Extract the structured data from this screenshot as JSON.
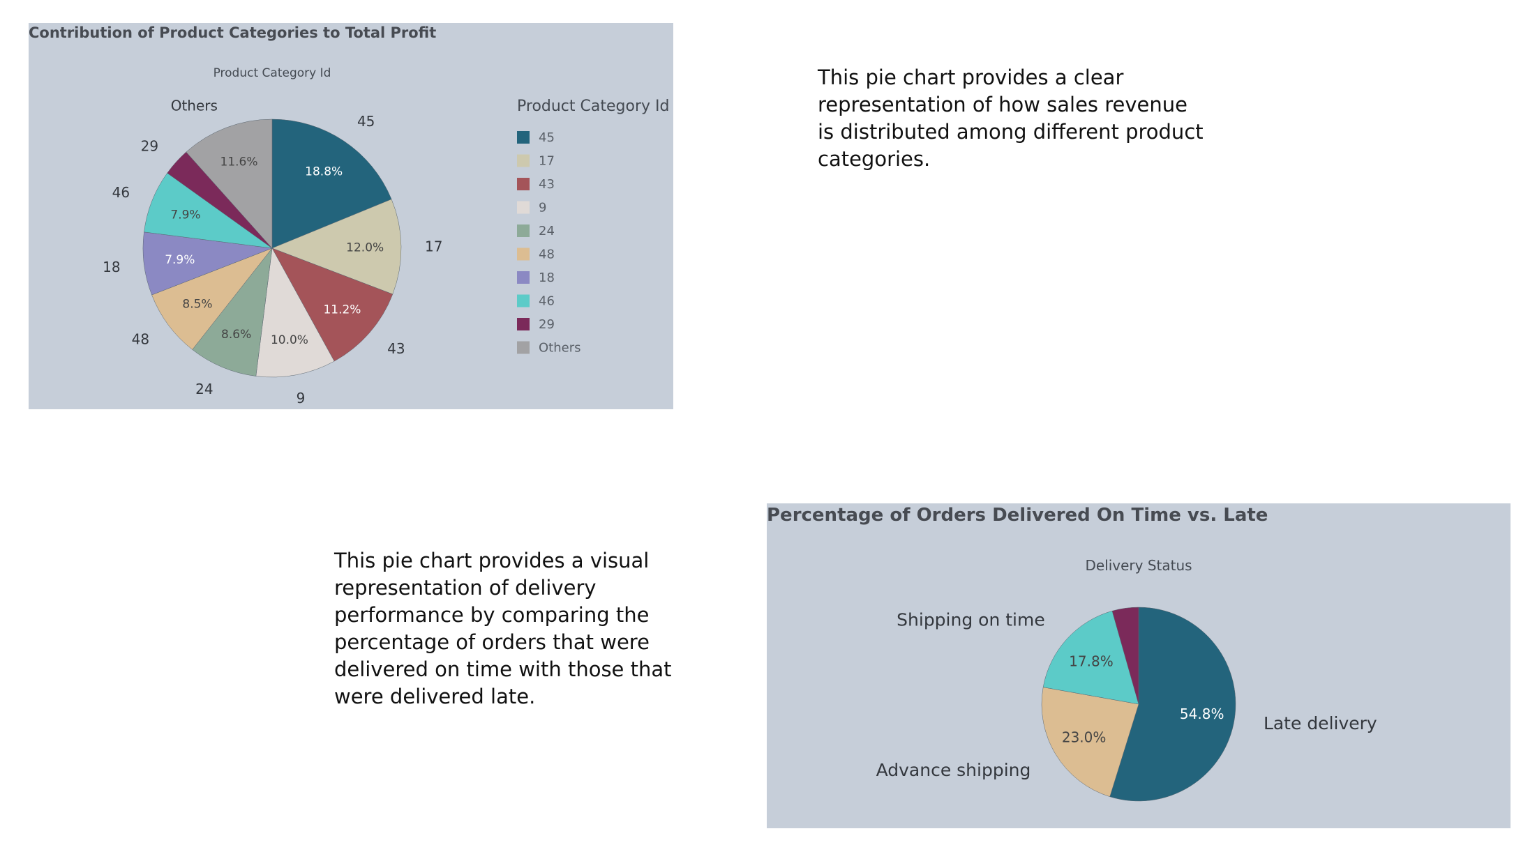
{
  "chart_data": [
    {
      "type": "pie",
      "title": "Contribution of Product Categories to Total Profit",
      "subtitle": "Product Category Id",
      "legend_title": "Product Category Id",
      "legend_position": "right",
      "categories": [
        "45",
        "17",
        "43",
        "9",
        "24",
        "48",
        "18",
        "46",
        "29",
        "Others"
      ],
      "values": [
        18.8,
        12.0,
        11.2,
        10.0,
        8.6,
        8.5,
        7.9,
        7.9,
        3.5,
        11.6
      ],
      "value_labels": [
        "18.8%",
        "12.0%",
        "11.2%",
        "10.0%",
        "8.6%",
        "8.5%",
        "7.9%",
        "7.9%",
        "",
        "11.6%"
      ],
      "colors": [
        "#23647c",
        "#cdc9ae",
        "#a45459",
        "#e0dad7",
        "#8daa98",
        "#dcbd92",
        "#8b89c3",
        "#5ccbc8",
        "#7b2a5a",
        "#a2a2a4"
      ],
      "label_text_colors": [
        "#ffffff",
        "#444444",
        "#ffffff",
        "#444444",
        "#444444",
        "#444444",
        "#ffffff",
        "#444444",
        "#ffffff",
        "#444444"
      ]
    },
    {
      "type": "pie",
      "title": "Percentage of Orders Delivered On Time vs. Late",
      "subtitle": "Delivery Status",
      "categories": [
        "Late delivery",
        "Advance shipping",
        "Shipping on time",
        ""
      ],
      "values": [
        54.8,
        23.0,
        17.8,
        4.4
      ],
      "value_labels": [
        "54.8%",
        "23.0%",
        "17.8%",
        ""
      ],
      "colors": [
        "#23647c",
        "#dcbd92",
        "#5ccbc8",
        "#7b2a5a"
      ],
      "label_text_colors": [
        "#ffffff",
        "#444444",
        "#444444",
        "#ffffff"
      ]
    }
  ],
  "texts": {
    "desc_profit": "This pie chart provides a clear representation of how sales revenue is distributed among different product categories.",
    "desc_delivery": "This pie chart provides a visual representation of delivery performance by comparing the percentage of orders that were delivered on time with those that were delivered late."
  }
}
